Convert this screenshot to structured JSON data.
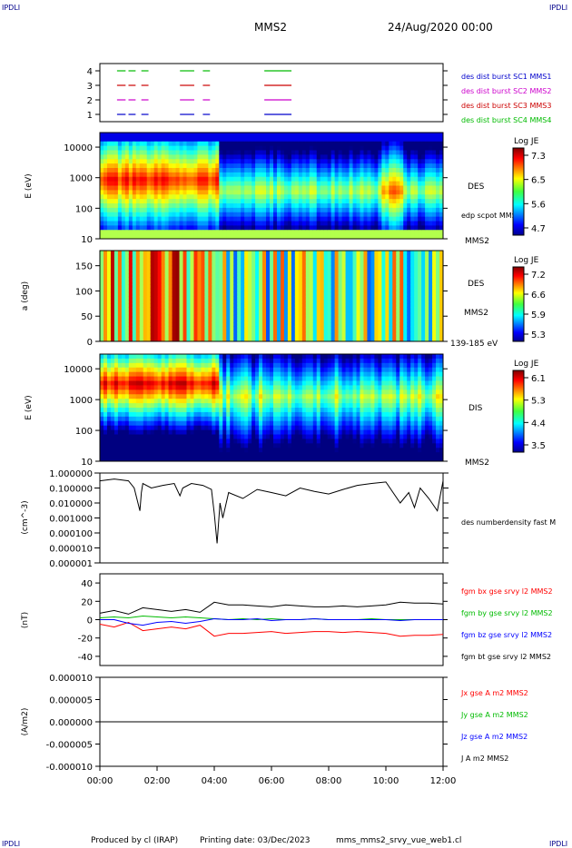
{
  "header": {
    "instrument": "MMS2",
    "datetime": "24/Aug/2020 00:00",
    "corner_tag": "IPDLI"
  },
  "footer": {
    "produced_by": "Produced by cl (IRAP)",
    "printing_date": "Printing date: 03/Dec/2023",
    "filename": "mms_mms2_srvy_vue_web1.cl"
  },
  "colors": {
    "mms1": "#0000cc",
    "mms2": "#cc00cc",
    "mms3": "#cc0000",
    "mms4": "#00bb00",
    "bx": "#ff0000",
    "by": "#00bb00",
    "bz": "#0000ff",
    "bt": "#000000"
  },
  "chart_data": [
    {
      "type": "timeline",
      "panel": "burst",
      "x_range": [
        0,
        12
      ],
      "ylim": [
        0.5,
        4.5
      ],
      "yticks": [
        "1",
        "2",
        "3",
        "4"
      ],
      "legend": [
        {
          "label": "des dist burst SC1 MMS1",
          "color": "#0000cc"
        },
        {
          "label": "des dist burst SC2 MMS2",
          "color": "#cc00cc"
        },
        {
          "label": "des dist burst SC3 MMS3",
          "color": "#cc0000"
        },
        {
          "label": "des dist burst SC4 MMS4",
          "color": "#00bb00"
        }
      ],
      "segments": [
        [
          0.6,
          0.9
        ],
        [
          1.0,
          1.25
        ],
        [
          1.45,
          1.7
        ],
        [
          2.8,
          3.3
        ],
        [
          3.6,
          3.85
        ],
        [
          5.75,
          6.7
        ]
      ]
    },
    {
      "type": "heatmap",
      "panel": "des-energy",
      "ylabel": "E (eV)",
      "yscale": "log",
      "ylim": [
        10,
        30000
      ],
      "yticks": [
        "10",
        "100",
        "1000",
        "10000"
      ],
      "right_labels": [
        "DES",
        "edp scpot MMS2",
        "MMS2"
      ],
      "colorbar": {
        "title": "Log JE",
        "ticks": [
          "7.3",
          "6.5",
          "5.6",
          "4.7"
        ]
      }
    },
    {
      "type": "heatmap",
      "panel": "des-pitch",
      "ylabel": "a (deg)",
      "ylim": [
        0,
        180
      ],
      "yticks": [
        "0",
        "50",
        "100",
        "150"
      ],
      "right_labels": [
        "DES",
        "MMS2",
        "139-185 eV"
      ],
      "colorbar": {
        "title": "Log JE",
        "ticks": [
          "7.2",
          "6.6",
          "5.9",
          "5.3"
        ]
      }
    },
    {
      "type": "heatmap",
      "panel": "dis-energy",
      "ylabel": "E (eV)",
      "yscale": "log",
      "ylim": [
        10,
        30000
      ],
      "yticks": [
        "10",
        "100",
        "1000",
        "10000"
      ],
      "right_labels": [
        "DIS",
        "MMS2"
      ],
      "colorbar": {
        "title": "Log JE",
        "ticks": [
          "6.1",
          "5.3",
          "4.4",
          "3.5"
        ]
      }
    },
    {
      "type": "line",
      "panel": "density",
      "ylabel": "(cm^-3)",
      "yscale": "log",
      "ylim": [
        1e-06,
        1.0
      ],
      "yticks": [
        "0.000001",
        "0.000010",
        "0.000100",
        "0.001000",
        "0.010000",
        "0.100000",
        "1.000000"
      ],
      "series": [
        {
          "name": "des numberdensity fast M",
          "x": [
            0,
            0.5,
            1.0,
            1.2,
            1.4,
            1.45,
            1.5,
            1.8,
            2.2,
            2.6,
            2.8,
            2.9,
            3.2,
            3.6,
            3.9,
            4.0,
            4.1,
            4.2,
            4.3,
            4.5,
            5.0,
            5.5,
            6.0,
            6.5,
            7.0,
            7.5,
            8.0,
            8.5,
            9.0,
            9.5,
            10.0,
            10.5,
            10.8,
            11.0,
            11.2,
            11.5,
            11.8,
            12.0
          ],
          "y": [
            0.3,
            0.4,
            0.3,
            0.1,
            0.003,
            0.05,
            0.2,
            0.1,
            0.15,
            0.2,
            0.03,
            0.1,
            0.2,
            0.15,
            0.08,
            0.002,
            2e-05,
            0.01,
            0.001,
            0.05,
            0.02,
            0.08,
            0.05,
            0.03,
            0.1,
            0.06,
            0.04,
            0.08,
            0.15,
            0.2,
            0.25,
            0.01,
            0.05,
            0.005,
            0.1,
            0.02,
            0.003,
            0.3
          ]
        }
      ]
    },
    {
      "type": "line",
      "panel": "magnetic-field",
      "ylabel": "(nT)",
      "ylim": [
        -50,
        50
      ],
      "yticks": [
        "-40",
        "-20",
        "0",
        "20",
        "40"
      ],
      "x": [
        0,
        0.5,
        1.0,
        1.5,
        2.0,
        2.5,
        3.0,
        3.5,
        4.0,
        4.5,
        5.0,
        5.5,
        6.0,
        6.5,
        7.0,
        7.5,
        8.0,
        8.5,
        9.0,
        9.5,
        10.0,
        10.5,
        11.0,
        11.5,
        12.0
      ],
      "series": [
        {
          "name": "fgm bx gse srvy l2 MMS2",
          "color": "#ff0000",
          "values": [
            -5,
            -8,
            -3,
            -12,
            -10,
            -8,
            -10,
            -6,
            -18,
            -15,
            -15,
            -14,
            -13,
            -15,
            -14,
            -13,
            -13,
            -14,
            -13,
            -14,
            -15,
            -18,
            -17,
            -17,
            -16
          ]
        },
        {
          "name": "fgm by gse srvy l2 MMS2",
          "color": "#00bb00",
          "values": [
            2,
            3,
            2,
            4,
            3,
            2,
            3,
            2,
            1,
            0,
            1,
            0,
            1,
            0,
            0,
            1,
            0,
            0,
            0,
            1,
            0,
            0,
            0,
            0,
            0
          ]
        },
        {
          "name": "fgm bz gse srvy l2 MMS2",
          "color": "#0000ff",
          "values": [
            0,
            0,
            -4,
            -6,
            -3,
            -2,
            -4,
            -2,
            1,
            0,
            0,
            1,
            -1,
            0,
            0,
            1,
            0,
            0,
            0,
            0,
            0,
            -1,
            0,
            0,
            0
          ]
        },
        {
          "name": "fgm bt gse srvy l2 MMS2",
          "color": "#000000",
          "values": [
            7,
            10,
            6,
            13,
            11,
            9,
            11,
            8,
            19,
            16,
            16,
            15,
            14,
            16,
            15,
            14,
            14,
            15,
            14,
            15,
            16,
            19,
            18,
            18,
            17
          ]
        }
      ]
    },
    {
      "type": "line",
      "panel": "current-density",
      "ylabel": "(A/m2)",
      "ylim": [
        -1e-05,
        1e-05
      ],
      "yticks": [
        "-0.000010",
        "-0.000005",
        "0.000000",
        "0.000005",
        "0.000010"
      ],
      "x": [
        0,
        12
      ],
      "series": [
        {
          "name": "Jx gse A m2 MMS2",
          "color": "#ff0000",
          "values": [
            0,
            0
          ]
        },
        {
          "name": "Jy gse A m2 MMS2",
          "color": "#00bb00",
          "values": [
            0,
            0
          ]
        },
        {
          "name": "Jz gse A m2 MMS2",
          "color": "#0000ff",
          "values": [
            0,
            0
          ]
        },
        {
          "name": "J A m2 MMS2",
          "color": "#000000",
          "values": [
            0,
            0
          ]
        }
      ],
      "xticks": [
        "00:00",
        "02:00",
        "04:00",
        "06:00",
        "08:00",
        "10:00",
        "12:00"
      ]
    }
  ]
}
